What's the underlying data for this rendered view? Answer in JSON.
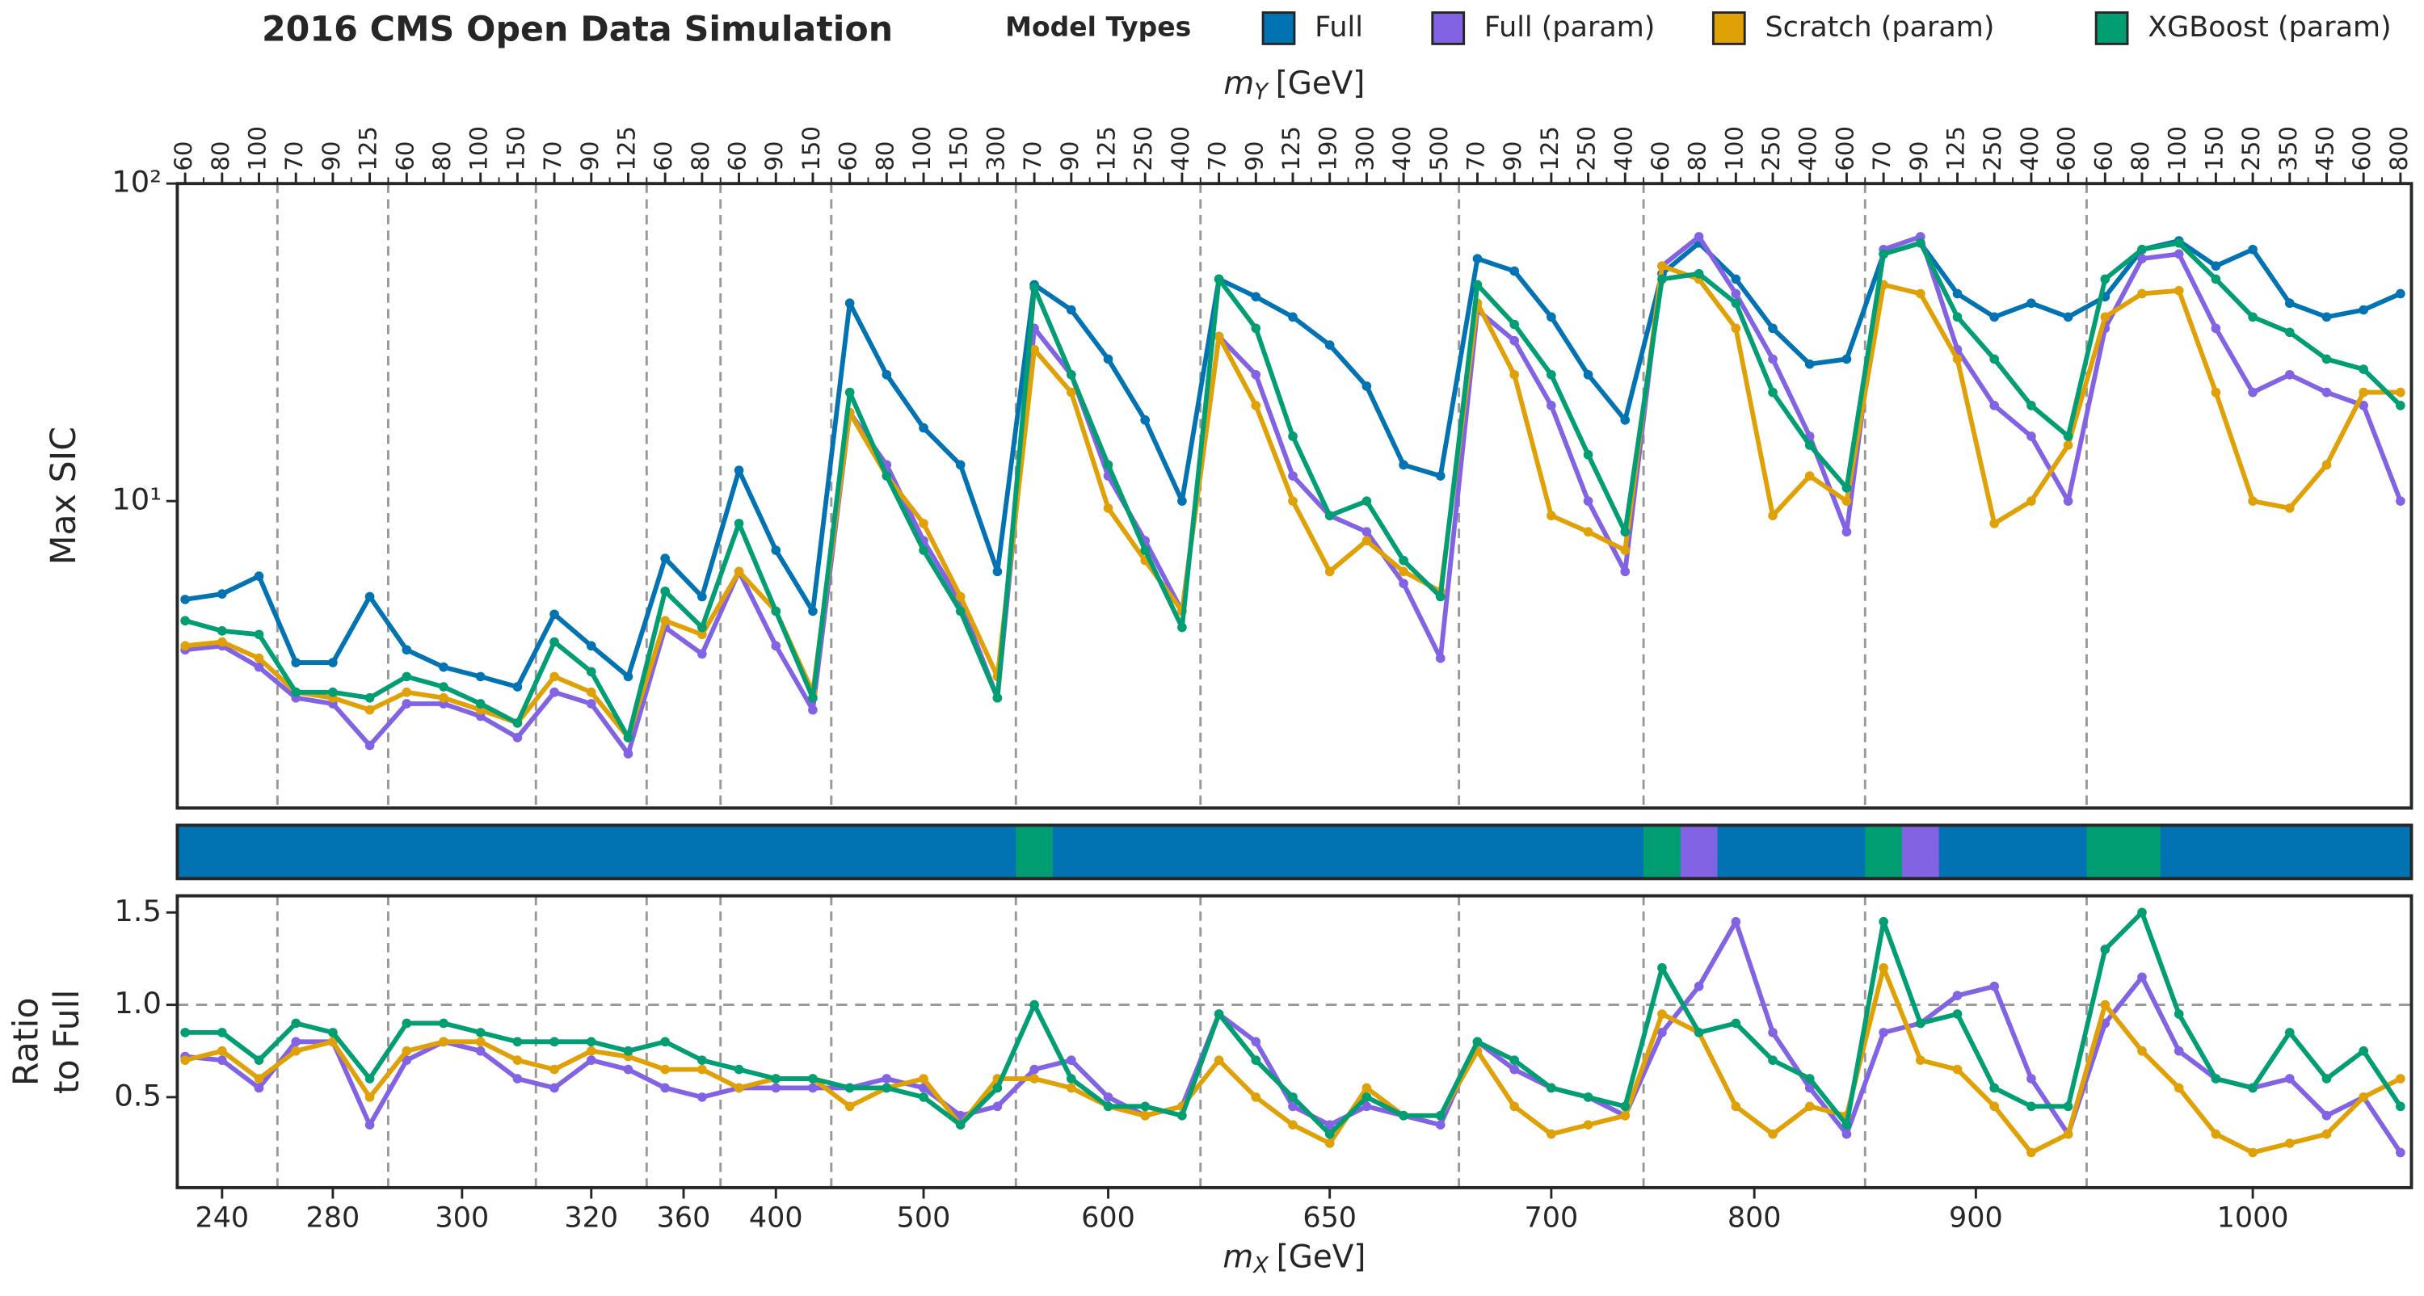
{
  "chart_data": [
    {
      "type": "line",
      "title": "2016 CMS Open Data Simulation",
      "legend_title": "Model Types",
      "x_label": {
        "symbol": "m",
        "subscript": "Y",
        "unit": "[GeV]"
      },
      "y_label": "Max SIC",
      "log": true,
      "ylim": [
        1.08,
        100
      ],
      "yticks": [
        {
          "value": 10,
          "label": "10¹"
        },
        {
          "value": 100,
          "label": "10²"
        }
      ],
      "groups": [
        {
          "label": 240,
          "categories": [
            60,
            80,
            100
          ]
        },
        {
          "label": 280,
          "categories": [
            70,
            90,
            125
          ]
        },
        {
          "label": 300,
          "categories": [
            60,
            80,
            100,
            150
          ]
        },
        {
          "label": 320,
          "categories": [
            70,
            90,
            125
          ]
        },
        {
          "label": 360,
          "categories": [
            60,
            80
          ]
        },
        {
          "label": 400,
          "categories": [
            60,
            90,
            150
          ]
        },
        {
          "label": 500,
          "categories": [
            60,
            80,
            100,
            150,
            300
          ]
        },
        {
          "label": 600,
          "categories": [
            70,
            90,
            125,
            250,
            400
          ]
        },
        {
          "label": 650,
          "categories": [
            70,
            90,
            125,
            190,
            300,
            400,
            500
          ]
        },
        {
          "label": 700,
          "categories": [
            70,
            90,
            125,
            250,
            400
          ]
        },
        {
          "label": 800,
          "categories": [
            60,
            80,
            100,
            250,
            400,
            600
          ]
        },
        {
          "label": 900,
          "categories": [
            70,
            90,
            125,
            250,
            400,
            600
          ]
        },
        {
          "label": 1000,
          "categories": [
            60,
            80,
            100,
            150,
            250,
            350,
            450,
            600,
            800
          ]
        }
      ],
      "series": [
        {
          "name": "Full",
          "color": "#0173b2",
          "values": [
            4.9,
            5.1,
            5.8,
            3.1,
            3.1,
            5.0,
            3.4,
            3.0,
            2.8,
            2.6,
            4.4,
            3.5,
            2.8,
            6.6,
            5.0,
            12.5,
            7.0,
            4.5,
            42,
            25,
            17,
            13,
            6.0,
            48,
            40,
            28,
            18,
            10,
            50,
            44,
            38,
            31,
            23,
            13,
            12,
            58,
            53,
            38,
            25,
            18,
            52,
            65,
            50,
            35,
            27,
            28,
            60,
            65,
            45,
            38,
            42,
            38,
            44,
            62,
            66,
            55,
            62,
            42,
            38,
            40,
            45
          ]
        },
        {
          "name": "Full (param)",
          "color": "#8263e3",
          "values": [
            3.4,
            3.5,
            3.0,
            2.4,
            2.3,
            1.7,
            2.3,
            2.3,
            2.1,
            1.8,
            2.5,
            2.3,
            1.6,
            4.0,
            3.3,
            6.0,
            3.5,
            2.2,
            19,
            13,
            7.5,
            4.8,
            2.4,
            35,
            25,
            12,
            7.5,
            4.5,
            33,
            25,
            12,
            9,
            8,
            5.5,
            3.2,
            40,
            32,
            20,
            10,
            6.0,
            55,
            68,
            45,
            28,
            16,
            8.0,
            62,
            68,
            30,
            20,
            16,
            10,
            35,
            58,
            60,
            35,
            22,
            25,
            22,
            20,
            10
          ]
        },
        {
          "name": "Scratch (param)",
          "color": "#e0a106",
          "values": [
            3.5,
            3.6,
            3.2,
            2.5,
            2.4,
            2.2,
            2.5,
            2.4,
            2.2,
            2.0,
            2.8,
            2.5,
            1.8,
            4.2,
            3.8,
            6.0,
            4.5,
            2.5,
            19,
            12,
            8.5,
            5.0,
            2.8,
            30,
            22,
            9.5,
            6.5,
            4.5,
            33,
            20,
            10,
            6.0,
            7.5,
            6.0,
            5.2,
            42,
            25,
            9.0,
            8.0,
            7.0,
            55,
            50,
            35,
            9.0,
            12,
            10,
            48,
            45,
            28,
            8.5,
            10,
            15,
            38,
            45,
            46,
            22,
            10,
            9.5,
            13,
            22,
            22
          ]
        },
        {
          "name": "XGBoost (param)",
          "color": "#029e73",
          "values": [
            4.2,
            3.9,
            3.8,
            2.5,
            2.5,
            2.4,
            2.8,
            2.6,
            2.3,
            2.0,
            3.6,
            2.9,
            1.8,
            5.2,
            4.0,
            8.5,
            4.5,
            2.4,
            22,
            12,
            7.0,
            4.5,
            2.4,
            47,
            25,
            13,
            7,
            4.0,
            50,
            35,
            16,
            9,
            10,
            6.5,
            5.0,
            48,
            36,
            25,
            14,
            8.0,
            50,
            52,
            42,
            22,
            15,
            11,
            60,
            65,
            38,
            28,
            20,
            16,
            50,
            62,
            65,
            50,
            38,
            34,
            28,
            26,
            20
          ]
        }
      ]
    },
    {
      "type": "strip",
      "best": [
        0,
        0,
        0,
        0,
        0,
        0,
        0,
        0,
        0,
        0,
        0,
        0,
        0,
        0,
        0,
        0,
        0,
        0,
        0,
        0,
        0,
        0,
        0,
        3,
        0,
        0,
        0,
        0,
        0,
        0,
        0,
        0,
        0,
        0,
        0,
        0,
        0,
        0,
        0,
        0,
        3,
        1,
        0,
        0,
        0,
        0,
        3,
        1,
        0,
        0,
        0,
        0,
        3,
        3,
        0,
        0,
        0,
        0,
        0,
        0,
        0
      ]
    },
    {
      "type": "line",
      "x_label": {
        "symbol": "m",
        "subscript": "X",
        "unit": "[GeV]"
      },
      "y_label": [
        "Ratio",
        "to Full"
      ],
      "ylim": [
        0.01,
        1.59
      ],
      "yticks": [
        0.5,
        {
          "value": 1,
          "label": "1.0"
        },
        1.5
      ],
      "reference_line": 1,
      "series": [
        {
          "color": "#8263e3",
          "values": [
            0.72,
            0.7,
            0.55,
            0.8,
            0.8,
            0.35,
            0.7,
            0.8,
            0.75,
            0.6,
            0.55,
            0.7,
            0.65,
            0.55,
            0.5,
            0.55,
            0.55,
            0.55,
            0.55,
            0.6,
            0.55,
            0.4,
            0.45,
            0.65,
            0.7,
            0.5,
            0.4,
            0.45,
            0.95,
            0.8,
            0.45,
            0.35,
            0.45,
            0.4,
            0.35,
            0.8,
            0.65,
            0.55,
            0.5,
            0.4,
            0.85,
            1.1,
            1.45,
            0.85,
            0.55,
            0.3,
            0.85,
            0.9,
            1.05,
            1.1,
            0.6,
            0.3,
            0.9,
            1.15,
            0.75,
            0.6,
            0.55,
            0.6,
            0.4,
            0.5,
            0.2
          ]
        },
        {
          "color": "#e0a106",
          "values": [
            0.7,
            0.75,
            0.6,
            0.75,
            0.8,
            0.5,
            0.75,
            0.8,
            0.8,
            0.7,
            0.65,
            0.75,
            0.72,
            0.65,
            0.65,
            0.55,
            0.6,
            0.6,
            0.45,
            0.55,
            0.6,
            0.35,
            0.6,
            0.6,
            0.55,
            0.45,
            0.4,
            0.45,
            0.7,
            0.5,
            0.35,
            0.25,
            0.55,
            0.4,
            0.4,
            0.75,
            0.45,
            0.3,
            0.35,
            0.4,
            0.95,
            0.85,
            0.45,
            0.3,
            0.45,
            0.4,
            1.2,
            0.7,
            0.65,
            0.45,
            0.2,
            0.3,
            1.0,
            0.75,
            0.55,
            0.3,
            0.2,
            0.25,
            0.3,
            0.5,
            0.6
          ]
        },
        {
          "color": "#029e73",
          "values": [
            0.85,
            0.85,
            0.7,
            0.9,
            0.85,
            0.6,
            0.9,
            0.9,
            0.85,
            0.8,
            0.8,
            0.8,
            0.75,
            0.8,
            0.7,
            0.65,
            0.6,
            0.6,
            0.55,
            0.55,
            0.5,
            0.35,
            0.55,
            1.0,
            0.6,
            0.45,
            0.45,
            0.4,
            0.95,
            0.7,
            0.5,
            0.3,
            0.5,
            0.4,
            0.4,
            0.8,
            0.7,
            0.55,
            0.5,
            0.45,
            1.2,
            0.85,
            0.9,
            0.7,
            0.6,
            0.35,
            1.45,
            0.9,
            0.95,
            0.55,
            0.45,
            0.45,
            1.3,
            1.5,
            0.95,
            0.6,
            0.55,
            0.85,
            0.6,
            0.75,
            0.45
          ]
        }
      ]
    }
  ]
}
